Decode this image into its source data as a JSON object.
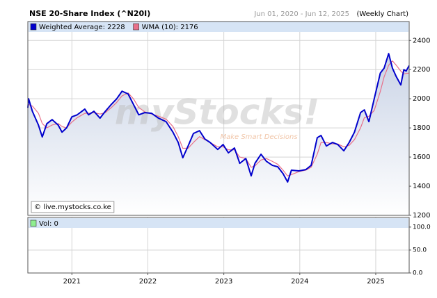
{
  "chart_data": [
    {
      "type": "line",
      "title": "NSE 20-Share Index (^N20I)",
      "date_range": "Jun 01, 2020 - Jun 12, 2025",
      "frequency": "(Weekly Chart)",
      "watermark": "myStocks!",
      "tagline": "Make Smart Decisions",
      "source": "© live.mystocks.co.ke",
      "x": [
        2020.42,
        2020.43,
        2020.48,
        2020.56,
        2020.61,
        2020.67,
        2020.74,
        2020.82,
        2020.87,
        2020.93,
        2021.0,
        2021.07,
        2021.17,
        2021.22,
        2021.29,
        2021.37,
        2021.44,
        2021.52,
        2021.59,
        2021.66,
        2021.74,
        2021.81,
        2021.88,
        2021.96,
        2022.05,
        2022.14,
        2022.24,
        2022.33,
        2022.4,
        2022.46,
        2022.53,
        2022.6,
        2022.68,
        2022.75,
        2022.82,
        2022.92,
        2022.99,
        2023.06,
        2023.14,
        2023.21,
        2023.29,
        2023.36,
        2023.41,
        2023.49,
        2023.56,
        2023.64,
        2023.71,
        2023.78,
        2023.84,
        2023.89,
        2023.99,
        2024.08,
        2024.15,
        2024.23,
        2024.28,
        2024.35,
        2024.43,
        2024.5,
        2024.58,
        2024.65,
        2024.72,
        2024.8,
        2024.85,
        2024.91,
        2024.98,
        2025.06,
        2025.11,
        2025.17,
        2025.22,
        2025.27,
        2025.33,
        2025.37,
        2025.4,
        2025.44
      ],
      "series": [
        {
          "name": "Weighted Average: 2228",
          "color": "#0000cc",
          "values": [
            1938,
            2000,
            1914,
            1819,
            1738,
            1829,
            1857,
            1819,
            1771,
            1800,
            1876,
            1890,
            1929,
            1890,
            1914,
            1867,
            1914,
            1962,
            2000,
            2052,
            2033,
            1962,
            1890,
            1905,
            1900,
            1867,
            1843,
            1771,
            1700,
            1595,
            1676,
            1762,
            1781,
            1724,
            1700,
            1652,
            1686,
            1629,
            1662,
            1557,
            1590,
            1471,
            1557,
            1619,
            1571,
            1543,
            1533,
            1486,
            1429,
            1510,
            1505,
            1514,
            1543,
            1733,
            1748,
            1676,
            1700,
            1686,
            1643,
            1700,
            1771,
            1905,
            1924,
            1843,
            2000,
            2176,
            2210,
            2310,
            2210,
            2152,
            2095,
            2200,
            2190,
            2228
          ]
        },
        {
          "name": "WMA (10): 2176",
          "color": "#e8708a",
          "values": [
            1950,
            1960,
            1950,
            1900,
            1830,
            1800,
            1820,
            1830,
            1810,
            1800,
            1840,
            1870,
            1900,
            1900,
            1905,
            1895,
            1905,
            1940,
            1975,
            2020,
            2040,
            2000,
            1940,
            1910,
            1895,
            1880,
            1860,
            1810,
            1740,
            1660,
            1660,
            1700,
            1740,
            1720,
            1700,
            1670,
            1670,
            1650,
            1650,
            1600,
            1590,
            1530,
            1540,
            1580,
            1590,
            1570,
            1550,
            1510,
            1470,
            1480,
            1500,
            1510,
            1530,
            1620,
            1700,
            1700,
            1690,
            1690,
            1670,
            1680,
            1720,
            1800,
            1870,
            1880,
            1920,
            2050,
            2150,
            2230,
            2260,
            2230,
            2190,
            2170,
            2174,
            2176
          ]
        }
      ],
      "xlim": [
        2020.42,
        2025.44
      ],
      "xticks": [
        2021,
        2022,
        2023,
        2024,
        2025
      ],
      "ylim": [
        1200,
        2530
      ],
      "yticks": [
        1200,
        1400,
        1600,
        1800,
        2000,
        2200,
        2400
      ],
      "grid": true
    },
    {
      "type": "bar",
      "legend_label": "Vol: 0",
      "color": "#90ee90",
      "xlim": [
        2020.42,
        2025.44
      ],
      "xticks": [
        2021,
        2022,
        2023,
        2024,
        2025
      ],
      "ylim": [
        0,
        121
      ],
      "yticks": [
        {
          "value": 0,
          "label": "0.0"
        },
        {
          "value": 50,
          "label": "50.0"
        },
        {
          "value": 100,
          "label": "100.0"
        }
      ],
      "grid": true
    }
  ]
}
